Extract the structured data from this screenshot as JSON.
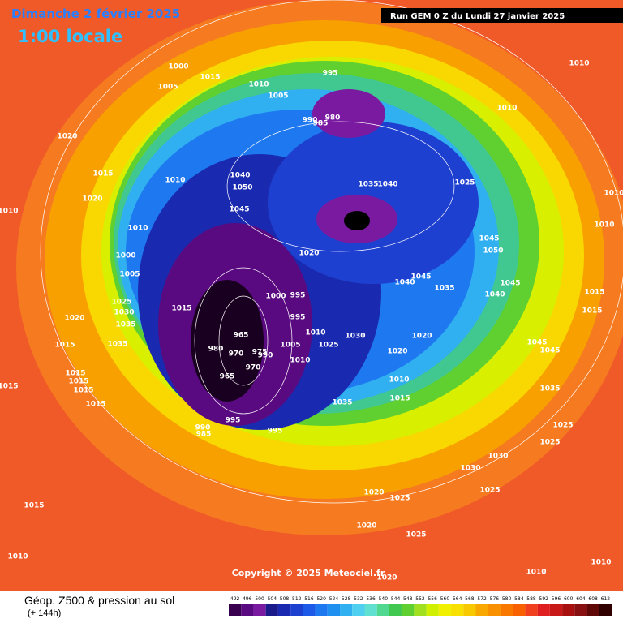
{
  "header": {
    "date": "Dimanche 2 février 2025",
    "time": "1:00 locale",
    "run": "Run GEM 0 Z du Lundi 27 janvier 2025"
  },
  "copyright": "Copyright © 2025 Meteociel.fr",
  "footer": {
    "title": "Géop. Z500 & pression au sol",
    "lead": "(+ 144h)"
  },
  "legend": {
    "values": [
      492,
      496,
      500,
      504,
      508,
      512,
      516,
      520,
      524,
      528,
      532,
      536,
      540,
      544,
      548,
      552,
      556,
      560,
      564,
      568,
      572,
      576,
      580,
      584,
      588,
      592,
      596,
      600,
      604,
      608,
      612
    ],
    "colors": [
      "#3a0050",
      "#5a0a80",
      "#7a1aa0",
      "#1a1a8a",
      "#1a2ab0",
      "#1e40d0",
      "#1e5ae8",
      "#1e78f0",
      "#2090f0",
      "#30b0f0",
      "#50d0f0",
      "#60e0d0",
      "#50d890",
      "#40c850",
      "#60d030",
      "#a0e020",
      "#d0f000",
      "#f0f000",
      "#f8e000",
      "#f8c800",
      "#f8a800",
      "#f89000",
      "#f87800",
      "#f86000",
      "#f04020",
      "#e02020",
      "#c81818",
      "#a81010",
      "#881010",
      "#600808",
      "#300000"
    ]
  },
  "isobar_labels": [
    "1000",
    "1005",
    "1015",
    "1010",
    "1005",
    "995",
    "980",
    "990",
    "985",
    "1020",
    "1015",
    "1010",
    "1040",
    "1050",
    "1020",
    "1010",
    "1045",
    "1035",
    "1040",
    "1025",
    "1010",
    "1010",
    "1010",
    "1010",
    "1010",
    "1020",
    "1045",
    "1050",
    "1000",
    "1005",
    "1040",
    "1045",
    "1035",
    "1045",
    "1040",
    "1015",
    "1015",
    "1025",
    "1030",
    "1015",
    "1000",
    "995",
    "995",
    "1020",
    "1035",
    "965",
    "980",
    "970",
    "975",
    "990",
    "1005",
    "1010",
    "1025",
    "1030",
    "1020",
    "1015",
    "1035",
    "970",
    "1010",
    "1020",
    "1045",
    "1045",
    "965",
    "1015",
    "1015",
    "1010",
    "1015",
    "1015",
    "1015",
    "1035",
    "1015",
    "1035",
    "995",
    "990",
    "985",
    "995",
    "1025",
    "1025",
    "1030",
    "1030",
    "1020",
    "1025",
    "1025",
    "1015",
    "1025",
    "1020",
    "1010",
    "1010",
    "1010",
    "1020"
  ]
}
